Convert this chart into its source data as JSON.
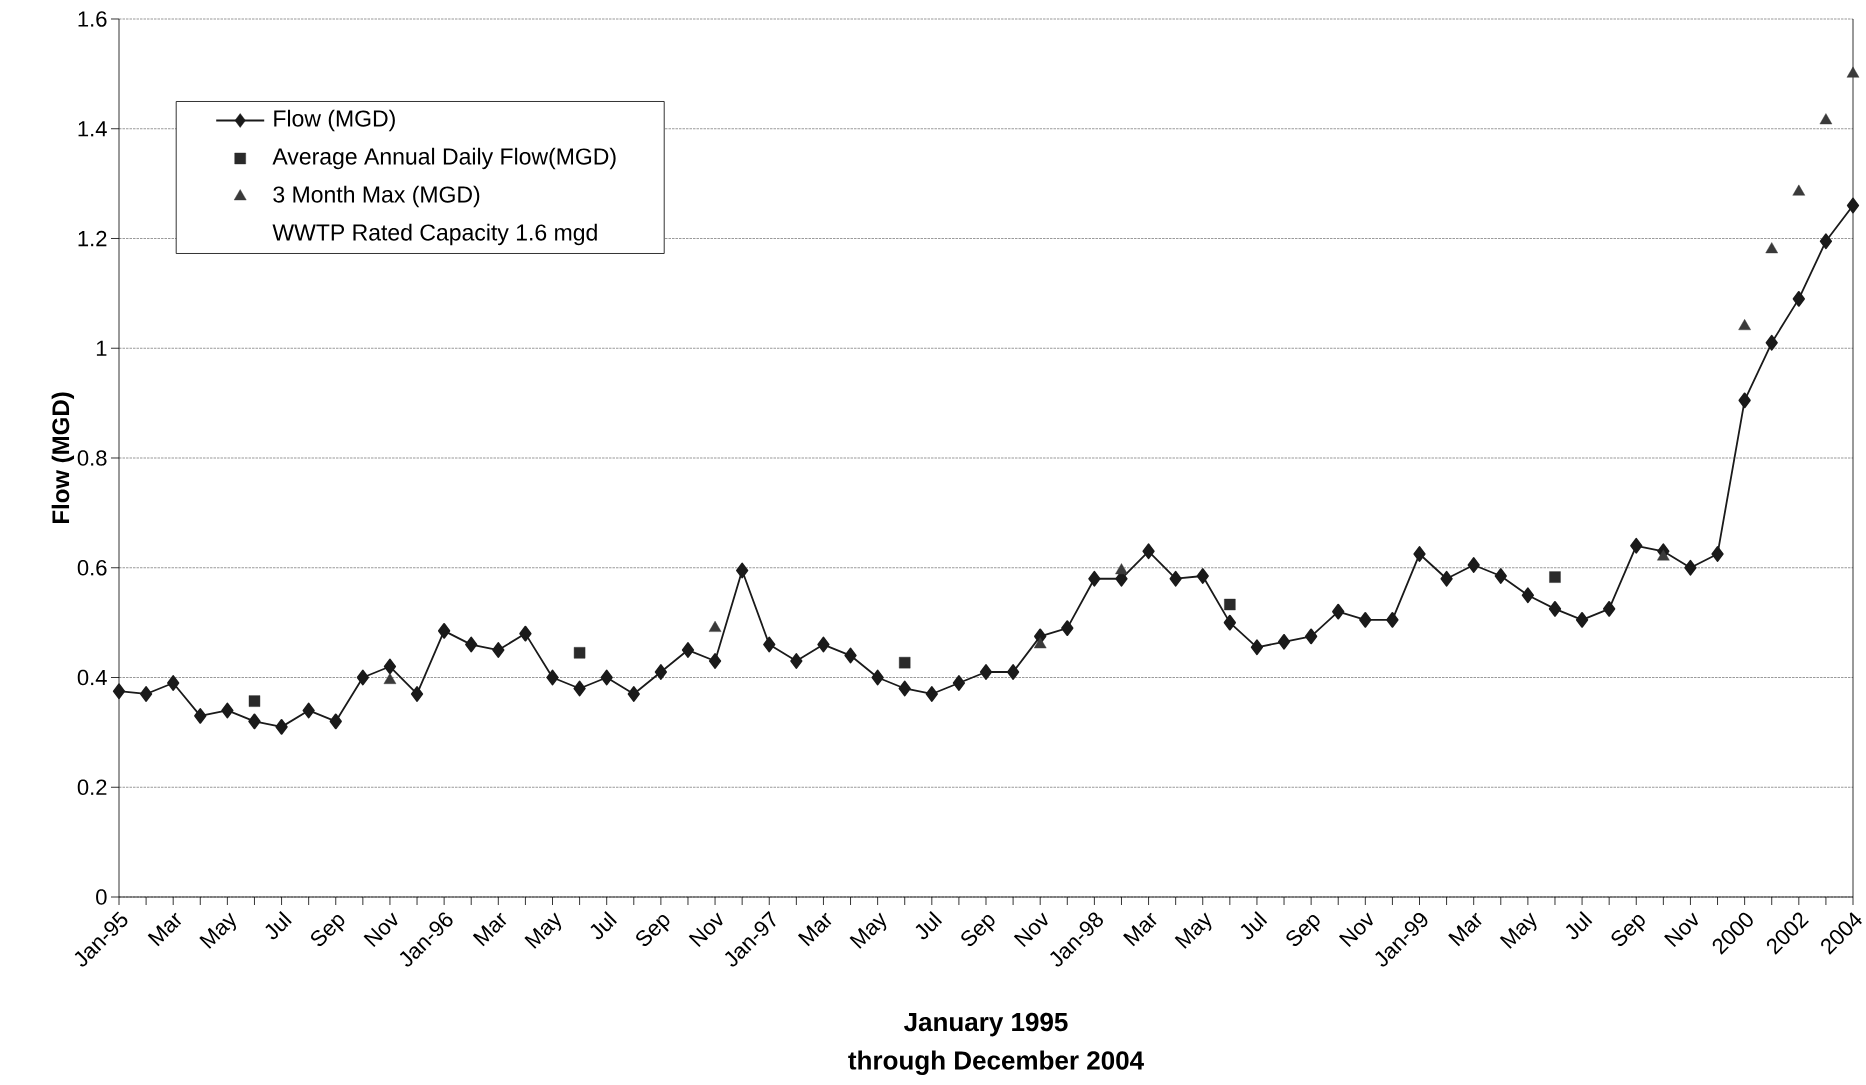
{
  "chart_data": {
    "type": "line",
    "xlabel": "January 1995",
    "ylabel": "Flow (MGD)",
    "annotations": [
      "WWTP Rated Capacity 1.6 mgd",
      "through December 2004"
    ],
    "categories": [
      "Jan-95",
      null,
      "Mar",
      null,
      "May",
      null,
      "Jul",
      null,
      "Sep",
      null,
      "Nov",
      null,
      "Jan-96",
      null,
      "Mar",
      null,
      "May",
      null,
      "Jul",
      null,
      "Sep",
      null,
      "Nov",
      null,
      "Jan-97",
      null,
      "Mar",
      null,
      "May",
      null,
      "Jul",
      null,
      "Sep",
      null,
      "Nov",
      null,
      "Jan-98",
      null,
      "Mar",
      null,
      "May",
      null,
      "Jul",
      null,
      "Sep",
      null,
      "Nov",
      null,
      "Jan-99",
      null,
      "Mar",
      null,
      "May",
      null,
      "Jul",
      null,
      "Sep",
      null,
      "Nov",
      null,
      "2000",
      null,
      "2002",
      null,
      "2004"
    ],
    "series": [
      {
        "name": "Flow (MGD)",
        "type": "line",
        "color": "#1a1a1a",
        "marker": "diamond",
        "line_style": "solid",
        "values": [
          0.375,
          0.37,
          0.39,
          0.33,
          0.34,
          0.32,
          0.31,
          0.34,
          0.32,
          0.4,
          0.42,
          0.37,
          0.485,
          0.46,
          0.45,
          0.48,
          0.4,
          0.38,
          0.4,
          0.37,
          0.41,
          0.45,
          0.43,
          0.595,
          0.46,
          0.43,
          0.46,
          0.44,
          0.4,
          0.38,
          0.37,
          0.39,
          0.41,
          0.41,
          0.475,
          0.49,
          0.58,
          0.58,
          0.63,
          0.58,
          0.585,
          0.5,
          0.455,
          0.465,
          0.475,
          0.52,
          0.505,
          0.505,
          0.625,
          0.58,
          0.605,
          0.585,
          0.55,
          0.525,
          0.505,
          0.525,
          0.64,
          0.63,
          0.6,
          0.625,
          0.905,
          1.01,
          1.09,
          1.195,
          1.26
        ]
      },
      {
        "name": "Average Annual Daily Flow(MGD)",
        "type": "scatter",
        "color": "#2a2a2a",
        "marker": "square",
        "values": [
          null,
          null,
          null,
          null,
          null,
          0.357,
          null,
          null,
          null,
          null,
          null,
          null,
          null,
          null,
          null,
          null,
          null,
          0.445,
          null,
          null,
          null,
          null,
          null,
          null,
          null,
          null,
          null,
          null,
          null,
          0.427,
          null,
          null,
          null,
          null,
          null,
          null,
          null,
          null,
          null,
          null,
          null,
          0.533,
          null,
          null,
          null,
          null,
          null,
          null,
          null,
          null,
          null,
          null,
          null,
          0.583,
          null,
          null,
          null,
          null,
          null,
          null,
          null,
          null,
          null,
          null,
          null
        ]
      },
      {
        "name": "3 Month Max (MGD)",
        "type": "scatter",
        "color": "#3a3a3a",
        "marker": "triangle",
        "values": [
          null,
          null,
          null,
          null,
          null,
          null,
          null,
          null,
          null,
          null,
          0.395,
          null,
          null,
          null,
          null,
          null,
          null,
          null,
          null,
          null,
          null,
          null,
          0.49,
          null,
          null,
          null,
          null,
          null,
          null,
          null,
          null,
          null,
          null,
          null,
          0.46,
          null,
          null,
          0.595,
          null,
          null,
          null,
          null,
          null,
          null,
          null,
          null,
          null,
          null,
          null,
          null,
          null,
          null,
          null,
          null,
          null,
          null,
          null,
          0.62,
          null,
          null,
          1.04,
          1.18,
          1.285,
          1.415,
          1.5
        ]
      }
    ],
    "ylim": [
      0,
      1.6
    ],
    "yticks": [
      0,
      0.2,
      0.4,
      0.6,
      0.8,
      1,
      1.2,
      1.4,
      1.6
    ],
    "grid": "y",
    "legend": "top left"
  }
}
